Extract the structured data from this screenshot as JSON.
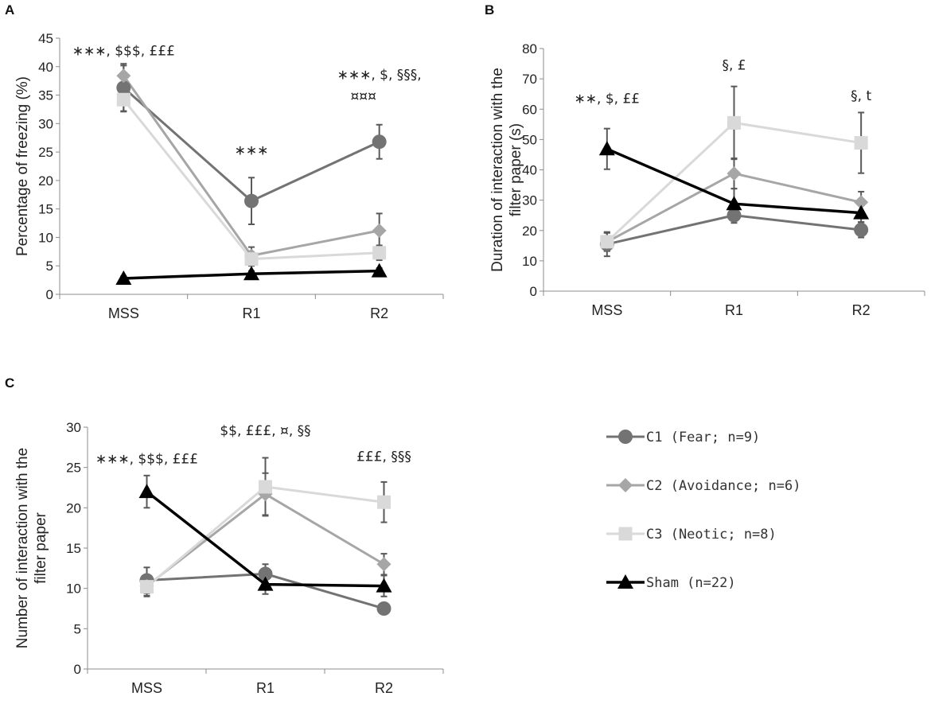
{
  "legend": [
    {
      "key": "C1",
      "label": "C1 (Fear; n=9)",
      "color": "#737373",
      "marker": "circle"
    },
    {
      "key": "C2",
      "label": "C2 (Avoidance; n=6)",
      "color": "#a6a6a6",
      "marker": "diamond"
    },
    {
      "key": "C3",
      "label": "C3 (Neotic; n=8)",
      "color": "#d9d9d9",
      "marker": "square"
    },
    {
      "key": "Sham",
      "label": "Sham (n=22)",
      "color": "#000000",
      "marker": "triangle"
    }
  ],
  "chart_data": [
    {
      "panel": "A",
      "type": "line",
      "categories": [
        "MSS",
        "R1",
        "R2"
      ],
      "ylabel": "Percentage of freezing (%)",
      "ylim": [
        0,
        45
      ],
      "yticks": [
        0,
        5,
        10,
        15,
        20,
        25,
        30,
        35,
        40,
        45
      ],
      "series": [
        {
          "key": "C1",
          "values": [
            36.3,
            16.4,
            26.8
          ],
          "errors": [
            4.2,
            4.1,
            3.0
          ]
        },
        {
          "key": "C2",
          "values": [
            38.4,
            6.8,
            11.2
          ],
          "errors": [
            1.8,
            1.5,
            3.0
          ]
        },
        {
          "key": "C3",
          "values": [
            34.2,
            6.2,
            7.3
          ],
          "errors": [
            2.0,
            1.2,
            1.3
          ]
        },
        {
          "key": "Sham",
          "values": [
            2.8,
            3.6,
            4.1
          ],
          "errors": [
            0.4,
            0.5,
            0.5
          ]
        }
      ],
      "annotations": [
        {
          "cat": 0,
          "y": 42,
          "text": "∗∗∗, $$$, £££",
          "anchor": "middle",
          "dx": 0
        },
        {
          "cat": 1,
          "y": 24.5,
          "text": "∗∗∗",
          "anchor": "middle",
          "dx": 0
        },
        {
          "cat": 2,
          "y": 37.8,
          "text": "∗∗∗, $, §§§,",
          "anchor": "middle",
          "dx": 0
        },
        {
          "cat": 2,
          "y": 34,
          "text": "¤¤¤",
          "anchor": "middle",
          "dx": -20
        }
      ]
    },
    {
      "panel": "B",
      "type": "line",
      "categories": [
        "MSS",
        "R1",
        "R2"
      ],
      "ylabel": "Duration of interaction with the filter paper (s)",
      "ylim": [
        0,
        80
      ],
      "yticks": [
        0,
        10,
        20,
        30,
        40,
        50,
        60,
        70,
        80
      ],
      "series": [
        {
          "key": "C1",
          "values": [
            15.5,
            25.0,
            20.2
          ],
          "errors": [
            4.0,
            2.5,
            2.5
          ]
        },
        {
          "key": "C2",
          "values": [
            16.2,
            38.8,
            29.3
          ],
          "errors": [
            3.0,
            5.0,
            3.5
          ]
        },
        {
          "key": "C3",
          "values": [
            16.3,
            55.5,
            48.9
          ],
          "errors": [
            3.0,
            12.0,
            10.0
          ]
        },
        {
          "key": "Sham",
          "values": [
            46.9,
            28.8,
            25.8
          ],
          "errors": [
            6.7,
            5.0,
            3.0
          ]
        }
      ],
      "annotations": [
        {
          "cat": 0,
          "y": 62,
          "text": "∗∗, $, ££",
          "anchor": "middle",
          "dx": 0
        },
        {
          "cat": 1,
          "y": 73,
          "text": "§, £",
          "anchor": "middle",
          "dx": 0
        },
        {
          "cat": 2,
          "y": 63,
          "text": "§, t",
          "anchor": "middle",
          "dx": 0
        }
      ]
    },
    {
      "panel": "C",
      "type": "line",
      "categories": [
        "MSS",
        "R1",
        "R2"
      ],
      "ylabel": "Number of interaction with the filter paper",
      "ylim": [
        0,
        30
      ],
      "yticks": [
        0,
        5,
        10,
        15,
        20,
        25,
        30
      ],
      "series": [
        {
          "key": "C1",
          "values": [
            11.0,
            11.8,
            7.5
          ],
          "errors": [
            1.6,
            1.2,
            0.5
          ]
        },
        {
          "key": "C2",
          "values": [
            10.3,
            21.7,
            13.0
          ],
          "errors": [
            1.2,
            2.6,
            1.3
          ]
        },
        {
          "key": "C3",
          "values": [
            10.2,
            22.6,
            20.7
          ],
          "errors": [
            1.2,
            3.6,
            2.5
          ]
        },
        {
          "key": "Sham",
          "values": [
            22.0,
            10.5,
            10.3
          ],
          "errors": [
            2.0,
            1.2,
            1.3
          ]
        }
      ],
      "annotations": [
        {
          "cat": 0,
          "y": 25.5,
          "text": "∗∗∗, $$$, £££",
          "anchor": "middle",
          "dx": 0
        },
        {
          "cat": 1,
          "y": 29,
          "text": "$$, £££, ¤, §§",
          "anchor": "middle",
          "dx": 0
        },
        {
          "cat": 2,
          "y": 25.8,
          "text": "£££, §§§",
          "anchor": "middle",
          "dx": 0
        }
      ]
    }
  ]
}
